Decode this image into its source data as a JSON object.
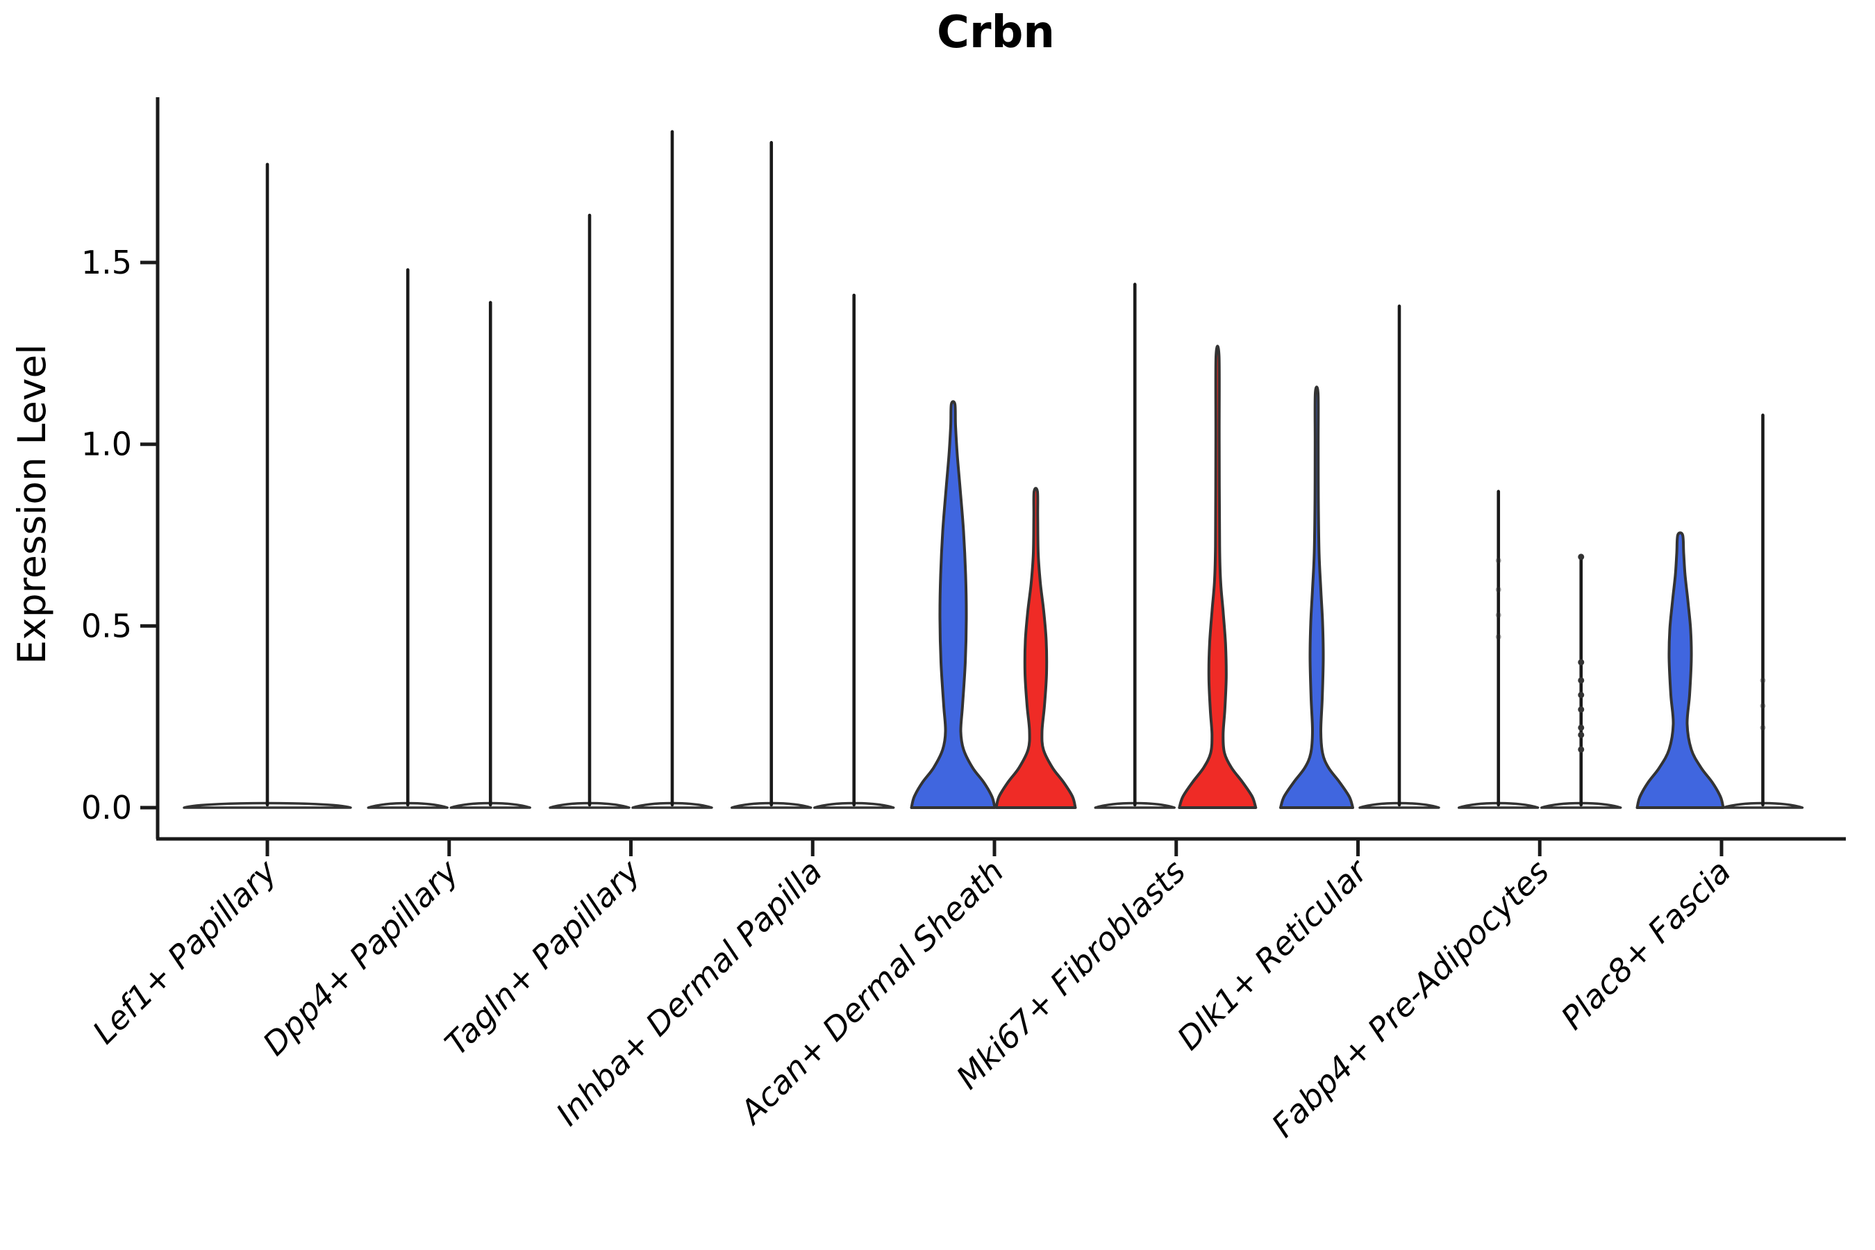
{
  "chart_data": {
    "type": "violin",
    "title": "Crbn",
    "ylabel": "Expression Level",
    "xlabel": "",
    "legend": "none",
    "grid": false,
    "ylim": [
      -0.09,
      1.96
    ],
    "ytick_values": [
      0,
      0.5,
      1.0,
      1.5
    ],
    "ytick_labels": [
      "0.0",
      "0.5",
      "1.0",
      "1.5"
    ],
    "colors": {
      "blue": "#4066DF",
      "red": "#EF2B26",
      "outline": "#333333",
      "axis": "#1a1a1a",
      "text": "#000000",
      "dot": "#333333"
    },
    "categories": [
      "Lef1+ Papillary",
      "Dpp4+ Papillary",
      "Tagln+ Papillary",
      "Inhba+ Dermal Papilla",
      "Acan+ Dermal Sheath",
      "Mki67+ Fibroblasts",
      "Dlk1+ Reticular",
      "Fabp4+ Pre-Adipocytes",
      "Plac8+ Fascia"
    ],
    "groups": [
      {
        "label": "Lef1+ Papillary",
        "violins": [
          {
            "offset": 0,
            "base": 120,
            "max": 1.77,
            "fill": "none"
          }
        ]
      },
      {
        "label": "Dpp4+ Papillary",
        "violins": [
          {
            "offset": -59.5,
            "base": 57,
            "max": 1.48,
            "fill": "none"
          },
          {
            "offset": 59.5,
            "base": 57,
            "max": 1.39,
            "fill": "none"
          }
        ]
      },
      {
        "label": "Tagln+ Papillary",
        "violins": [
          {
            "offset": -59.5,
            "base": 57,
            "max": 1.63,
            "fill": "none"
          },
          {
            "offset": 59.5,
            "base": 57,
            "max": 1.86,
            "fill": "none"
          }
        ]
      },
      {
        "label": "Inhba+ Dermal Papilla",
        "violins": [
          {
            "offset": -59.5,
            "base": 57,
            "max": 1.83,
            "fill": "none"
          },
          {
            "offset": 59.5,
            "base": 57,
            "max": 1.41,
            "fill": "none"
          }
        ]
      },
      {
        "label": "Acan+ Dermal Sheath",
        "violins": [
          {
            "offset": -59.5,
            "base": 60,
            "max": 1.11,
            "fill": "blue",
            "profile": [
              [
                0,
                60
              ],
              [
                0.03,
                56
              ],
              [
                0.07,
                44
              ],
              [
                0.11,
                28
              ],
              [
                0.16,
                15
              ],
              [
                0.21,
                11
              ],
              [
                0.28,
                13.5
              ],
              [
                0.4,
                17.5
              ],
              [
                0.52,
                19
              ],
              [
                0.64,
                18
              ],
              [
                0.76,
                15
              ],
              [
                0.88,
                10
              ],
              [
                0.97,
                6
              ],
              [
                1.05,
                3.5
              ],
              [
                1.11,
                2.6
              ]
            ]
          },
          {
            "offset": 59.5,
            "base": 57,
            "max": 0.87,
            "fill": "red",
            "profile": [
              [
                0,
                57
              ],
              [
                0.03,
                53
              ],
              [
                0.07,
                40
              ],
              [
                0.11,
                24
              ],
              [
                0.16,
                11
              ],
              [
                0.21,
                9
              ],
              [
                0.28,
                12.5
              ],
              [
                0.37,
                15.5
              ],
              [
                0.46,
                15
              ],
              [
                0.54,
                11.5
              ],
              [
                0.62,
                6.5
              ],
              [
                0.7,
                3.5
              ],
              [
                0.8,
                2.8
              ],
              [
                0.87,
                2.4
              ]
            ]
          }
        ]
      },
      {
        "label": "Mki67+ Fibroblasts",
        "violins": [
          {
            "offset": -59.5,
            "base": 57,
            "max": 1.44,
            "fill": "none"
          },
          {
            "offset": 59.5,
            "base": 55,
            "max": 1.24,
            "fill": "red",
            "profile": [
              [
                0,
                55
              ],
              [
                0.03,
                50
              ],
              [
                0.07,
                36
              ],
              [
                0.11,
                20
              ],
              [
                0.15,
                10
              ],
              [
                0.2,
                8
              ],
              [
                0.27,
                10.5
              ],
              [
                0.36,
                12.5
              ],
              [
                0.45,
                11.5
              ],
              [
                0.54,
                8
              ],
              [
                0.62,
                4.5
              ],
              [
                0.72,
                3
              ],
              [
                1.0,
                2.4
              ],
              [
                1.24,
                2.2
              ]
            ]
          }
        ]
      },
      {
        "label": "Dlk1+ Reticular",
        "violins": [
          {
            "offset": -59.5,
            "base": 52,
            "max": 1.14,
            "fill": "blue",
            "profile": [
              [
                0,
                52
              ],
              [
                0.03,
                47
              ],
              [
                0.07,
                33
              ],
              [
                0.11,
                17
              ],
              [
                0.15,
                8.5
              ],
              [
                0.21,
                6
              ],
              [
                0.3,
                8
              ],
              [
                0.41,
                9.5
              ],
              [
                0.51,
                8.5
              ],
              [
                0.6,
                6
              ],
              [
                0.7,
                3.5
              ],
              [
                0.85,
                2.4
              ],
              [
                1.0,
                2.2
              ],
              [
                1.14,
                2
              ]
            ]
          },
          {
            "offset": 59.5,
            "base": 57,
            "max": 1.38,
            "fill": "none"
          }
        ]
      },
      {
        "label": "Fabp4+ Pre-Adipocytes",
        "violins": [
          {
            "offset": -59.5,
            "base": 57,
            "max": 0.87,
            "fill": "none",
            "faint_dots": [
              0.68,
              0.6,
              0.53,
              0.47
            ]
          },
          {
            "offset": 59.5,
            "base": 57,
            "max": 0.69,
            "fill": "none",
            "dots": [
              0.69,
              0.4,
              0.35,
              0.31,
              0.27,
              0.22,
              0.2,
              0.16
            ]
          }
        ]
      },
      {
        "label": "Plac8+ Fascia",
        "violins": [
          {
            "offset": -59.5,
            "base": 62,
            "max": 0.75,
            "fill": "blue",
            "profile": [
              [
                0,
                62
              ],
              [
                0.03,
                58
              ],
              [
                0.07,
                46
              ],
              [
                0.11,
                30
              ],
              [
                0.16,
                16
              ],
              [
                0.23,
                10
              ],
              [
                0.31,
                13.5
              ],
              [
                0.41,
                16
              ],
              [
                0.49,
                15
              ],
              [
                0.57,
                11
              ],
              [
                0.64,
                7
              ],
              [
                0.7,
                5
              ],
              [
                0.75,
                3.5
              ]
            ]
          },
          {
            "offset": 59.5,
            "base": 57,
            "max": 1.08,
            "fill": "none",
            "faint_dots": [
              0.35,
              0.28,
              0.22
            ]
          }
        ]
      }
    ]
  }
}
